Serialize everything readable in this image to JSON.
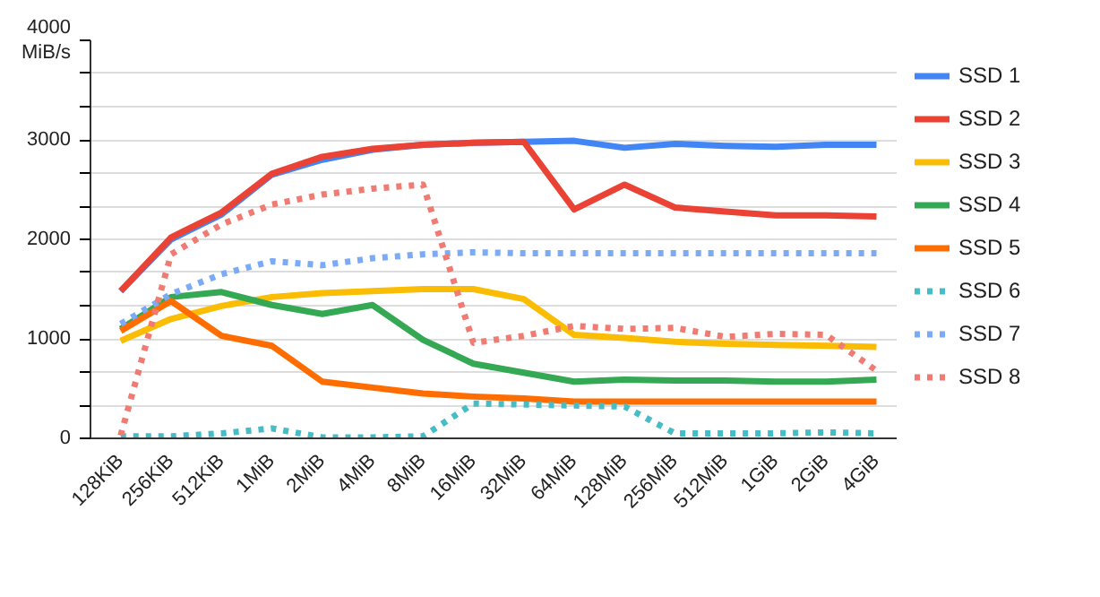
{
  "chart_data": {
    "type": "line",
    "ylabel": "MiB/s",
    "categories": [
      "128KiB",
      "256KiB",
      "512KiB",
      "1MiB",
      "2MiB",
      "4MiB",
      "8MiB",
      "16MiB",
      "32MiB",
      "64MiB",
      "128MiB",
      "256MiB",
      "512MiB",
      "1GiB",
      "2GiB",
      "4GiB"
    ],
    "series": [
      {
        "name": "SSD 1",
        "color": "#4285f4",
        "line_style": "solid",
        "values": [
          1480,
          2000,
          2250,
          2650,
          2800,
          2900,
          2950,
          2970,
          2980,
          2990,
          2920,
          2960,
          2940,
          2930,
          2950,
          2950
        ]
      },
      {
        "name": "SSD 2",
        "color": "#ea4335",
        "line_style": "solid",
        "values": [
          1480,
          2020,
          2270,
          2660,
          2830,
          2910,
          2950,
          2970,
          2980,
          2300,
          2550,
          2320,
          2280,
          2240,
          2240,
          2230
        ]
      },
      {
        "name": "SSD 3",
        "color": "#fbbc04",
        "line_style": "solid",
        "values": [
          980,
          1200,
          1330,
          1420,
          1460,
          1480,
          1500,
          1500,
          1400,
          1040,
          1010,
          970,
          950,
          940,
          930,
          920
        ]
      },
      {
        "name": "SSD 4",
        "color": "#34a853",
        "line_style": "solid",
        "values": [
          1100,
          1420,
          1470,
          1340,
          1250,
          1340,
          990,
          750,
          660,
          570,
          590,
          580,
          580,
          570,
          570,
          590
        ]
      },
      {
        "name": "SSD 5",
        "color": "#ff6d01",
        "line_style": "solid",
        "values": [
          1080,
          1380,
          1030,
          930,
          570,
          510,
          450,
          420,
          400,
          370,
          370,
          370,
          370,
          370,
          370,
          370
        ]
      },
      {
        "name": "SSD 6",
        "color": "#46bdc6",
        "line_style": "dotted",
        "values": [
          20,
          20,
          50,
          100,
          10,
          10,
          20,
          350,
          340,
          330,
          320,
          50,
          50,
          50,
          60,
          50
        ]
      },
      {
        "name": "SSD 7",
        "color": "#7baaf7",
        "line_style": "dotted",
        "values": [
          1150,
          1450,
          1650,
          1780,
          1740,
          1810,
          1850,
          1870,
          1860,
          1860,
          1860,
          1860,
          1860,
          1860,
          1860,
          1860
        ]
      },
      {
        "name": "SSD 8",
        "color": "#f07b72",
        "line_style": "dotted",
        "values": [
          30,
          1850,
          2150,
          2350,
          2450,
          2510,
          2550,
          960,
          1030,
          1130,
          1100,
          1110,
          1020,
          1050,
          1040,
          680
        ]
      }
    ],
    "ylim": [
      0,
      4000
    ],
    "yticks": [
      0,
      {
        "value": 333.3,
        "label": null
      },
      {
        "value": 666.7,
        "label": null
      },
      1000,
      {
        "value": 1333.3,
        "label": null
      },
      {
        "value": 1666.7,
        "label": null
      },
      2000,
      {
        "value": 2333.3,
        "label": null
      },
      {
        "value": 2666.7,
        "label": null
      },
      3000,
      {
        "value": 3333.3,
        "label": null
      },
      {
        "value": 3666.7,
        "label": null
      },
      4000
    ],
    "grid": "y",
    "legend": "right"
  }
}
